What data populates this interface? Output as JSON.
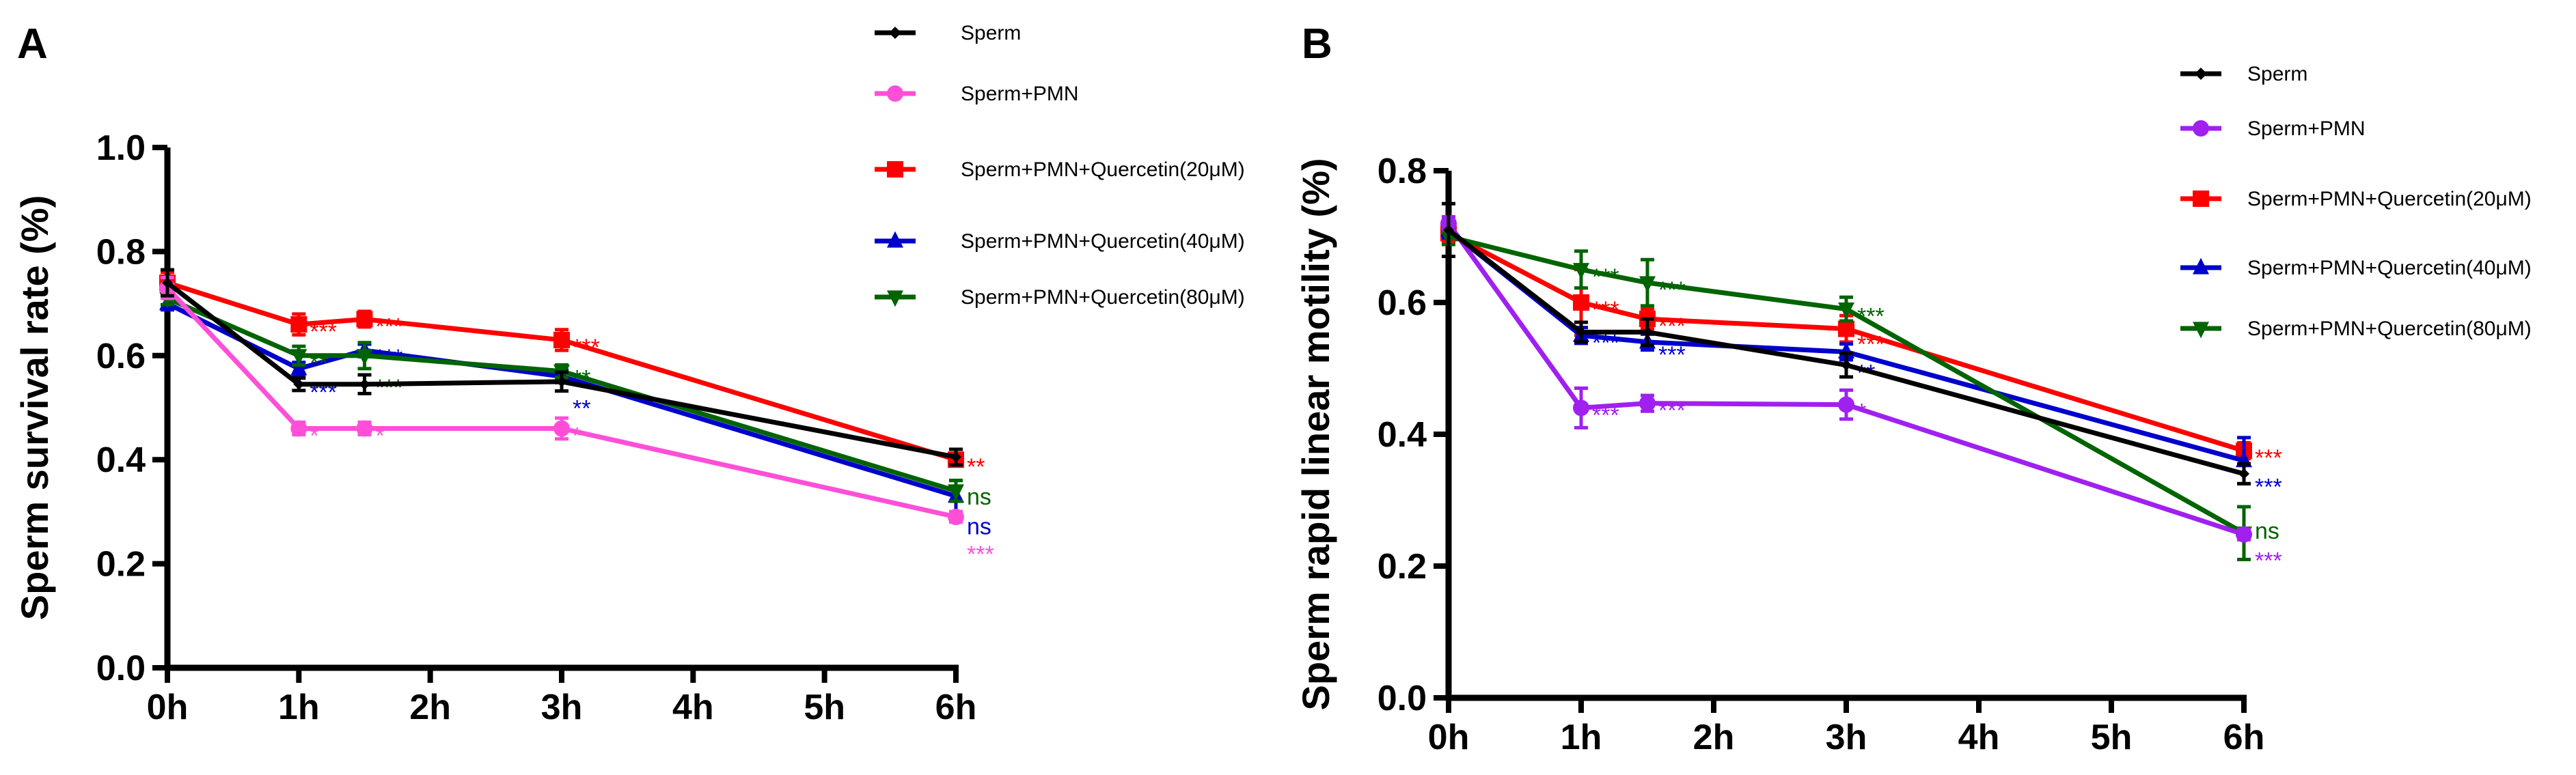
{
  "chart_data": [
    {
      "type": "line",
      "panel_label": "A",
      "title": "",
      "xlabel": "",
      "ylabel": "Sperm survival rate (%)",
      "x": [
        0,
        1,
        1.5,
        3,
        6
      ],
      "xticks": [
        0,
        1,
        2,
        3,
        4,
        5,
        6
      ],
      "xtick_labels": [
        "0h",
        "1h",
        "2h",
        "3h",
        "4h",
        "5h",
        "6h"
      ],
      "xlim": [
        0,
        6
      ],
      "ylim": [
        0,
        1.0
      ],
      "yticks": [
        0.0,
        0.2,
        0.4,
        0.6,
        0.8,
        1.0
      ],
      "ytick_labels": [
        "0.0",
        "0.2",
        "0.4",
        "0.6",
        "0.8",
        "1.0"
      ],
      "grid": false,
      "legend_position": "top-right",
      "series": [
        {
          "name": "Sperm",
          "color": "#000000",
          "marker": "diamond",
          "values": [
            0.74,
            0.545,
            0.545,
            0.55,
            0.405
          ],
          "error": [
            0.025,
            0.012,
            0.018,
            0.018,
            0.015
          ],
          "annotations": [
            "",
            "",
            "",
            "",
            ""
          ]
        },
        {
          "name": "Sperm+PMN",
          "color": "#ff4fd8",
          "marker": "circle",
          "values": [
            0.73,
            0.46,
            0.46,
            0.46,
            0.29
          ],
          "error": [
            0.02,
            0.012,
            0.012,
            0.02,
            0.01
          ],
          "annotations": [
            "",
            "*",
            "*",
            "*",
            "***"
          ]
        },
        {
          "name": "Sperm+PMN+Quercetin(20μM)",
          "color": "#ff0000",
          "marker": "square",
          "values": [
            0.74,
            0.66,
            0.67,
            0.63,
            0.4
          ],
          "error": [
            0.02,
            0.02,
            0.015,
            0.02,
            0.012
          ],
          "annotations": [
            "",
            "***",
            "***",
            "***",
            "**"
          ]
        },
        {
          "name": "Sperm+PMN+Quercetin(40μM)",
          "color": "#0000cc",
          "marker": "triangle-up",
          "values": [
            0.7,
            0.575,
            0.61,
            0.56,
            0.33
          ],
          "error": [
            0.012,
            0.012,
            0.012,
            0.012,
            0.03
          ],
          "annotations": [
            "",
            "***",
            "***",
            "**",
            "ns"
          ]
        },
        {
          "name": "Sperm+PMN+Quercetin(80μM)",
          "color": "#006400",
          "marker": "triangle-down",
          "values": [
            0.71,
            0.6,
            0.6,
            0.57,
            0.34
          ],
          "error": [
            0.012,
            0.018,
            0.025,
            0.012,
            0.02
          ],
          "annotations": [
            "",
            "**",
            "***",
            "**",
            "ns"
          ]
        }
      ]
    },
    {
      "type": "line",
      "panel_label": "B",
      "title": "",
      "xlabel": "",
      "ylabel": "Sperm rapid linear motility (%)",
      "x": [
        0,
        1,
        1.5,
        3,
        6
      ],
      "xticks": [
        0,
        1,
        2,
        3,
        4,
        5,
        6
      ],
      "xtick_labels": [
        "0h",
        "1h",
        "2h",
        "3h",
        "4h",
        "5h",
        "6h"
      ],
      "xlim": [
        0,
        6
      ],
      "ylim": [
        0,
        0.8
      ],
      "yticks": [
        0.0,
        0.2,
        0.4,
        0.6,
        0.8
      ],
      "ytick_labels": [
        "0.0",
        "0.2",
        "0.4",
        "0.6",
        "0.8"
      ],
      "grid": false,
      "legend_position": "top-right",
      "series": [
        {
          "name": "Sperm",
          "color": "#000000",
          "marker": "diamond",
          "values": [
            0.71,
            0.555,
            0.555,
            0.505,
            0.34
          ],
          "error": [
            0.04,
            0.015,
            0.02,
            0.018,
            0.015
          ],
          "annotations": [
            "",
            "",
            "",
            "",
            ""
          ]
        },
        {
          "name": "Sperm+PMN",
          "color": "#a020f0",
          "marker": "circle",
          "values": [
            0.72,
            0.44,
            0.447,
            0.445,
            0.248
          ],
          "error": [
            0.01,
            0.03,
            0.012,
            0.022,
            0.008
          ],
          "annotations": [
            "",
            "***",
            "***",
            "*",
            "***"
          ]
        },
        {
          "name": "Sperm+PMN+Quercetin(20μM)",
          "color": "#ff0000",
          "marker": "square",
          "values": [
            0.705,
            0.6,
            0.575,
            0.56,
            0.375
          ],
          "error": [
            0.012,
            0.05,
            0.015,
            0.02,
            0.012
          ],
          "annotations": [
            "",
            "***",
            "***",
            "***",
            "***"
          ]
        },
        {
          "name": "Sperm+PMN+Quercetin(40μM)",
          "color": "#0000cc",
          "marker": "triangle-up",
          "values": [
            0.71,
            0.55,
            0.54,
            0.525,
            0.36
          ],
          "error": [
            0.012,
            0.012,
            0.012,
            0.012,
            0.035
          ],
          "annotations": [
            "",
            "***",
            "***",
            "**",
            "***"
          ]
        },
        {
          "name": "Sperm+PMN+Quercetin(80μM)",
          "color": "#006400",
          "marker": "triangle-down",
          "values": [
            0.7,
            0.65,
            0.63,
            0.59,
            0.25
          ],
          "error": [
            0.012,
            0.028,
            0.035,
            0.018,
            0.04
          ],
          "annotations": [
            "",
            "***",
            "***",
            "***",
            "ns"
          ]
        }
      ]
    }
  ]
}
